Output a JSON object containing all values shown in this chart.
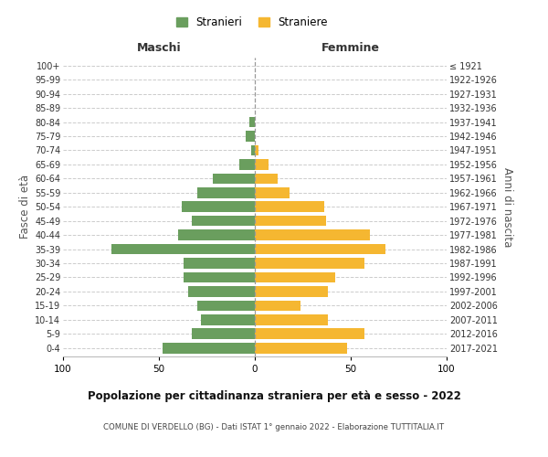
{
  "age_groups": [
    "0-4",
    "5-9",
    "10-14",
    "15-19",
    "20-24",
    "25-29",
    "30-34",
    "35-39",
    "40-44",
    "45-49",
    "50-54",
    "55-59",
    "60-64",
    "65-69",
    "70-74",
    "75-79",
    "80-84",
    "85-89",
    "90-94",
    "95-99",
    "100+"
  ],
  "birth_years": [
    "2017-2021",
    "2012-2016",
    "2007-2011",
    "2002-2006",
    "1997-2001",
    "1992-1996",
    "1987-1991",
    "1982-1986",
    "1977-1981",
    "1972-1976",
    "1967-1971",
    "1962-1966",
    "1957-1961",
    "1952-1956",
    "1947-1951",
    "1942-1946",
    "1937-1941",
    "1932-1936",
    "1927-1931",
    "1922-1926",
    "≤ 1921"
  ],
  "maschi": [
    48,
    33,
    28,
    30,
    35,
    37,
    37,
    75,
    40,
    33,
    38,
    30,
    22,
    8,
    2,
    5,
    3,
    0,
    0,
    0,
    0
  ],
  "femmine": [
    48,
    57,
    38,
    24,
    38,
    42,
    57,
    68,
    60,
    37,
    36,
    18,
    12,
    7,
    2,
    0,
    0,
    0,
    0,
    0,
    0
  ],
  "maschi_color": "#6a9e5e",
  "femmine_color": "#f5b731",
  "title": "Popolazione per cittadinanza straniera per età e sesso - 2022",
  "subtitle": "COMUNE DI VERDELLO (BG) - Dati ISTAT 1° gennaio 2022 - Elaborazione TUTTITALIA.IT",
  "ylabel_left": "Fasce di età",
  "ylabel_right": "Anni di nascita",
  "xlabel_left": "Maschi",
  "xlabel_right": "Femmine",
  "legend_stranieri": "Stranieri",
  "legend_straniere": "Straniere",
  "xlim": 100,
  "background_color": "#ffffff",
  "grid_color": "#cccccc"
}
